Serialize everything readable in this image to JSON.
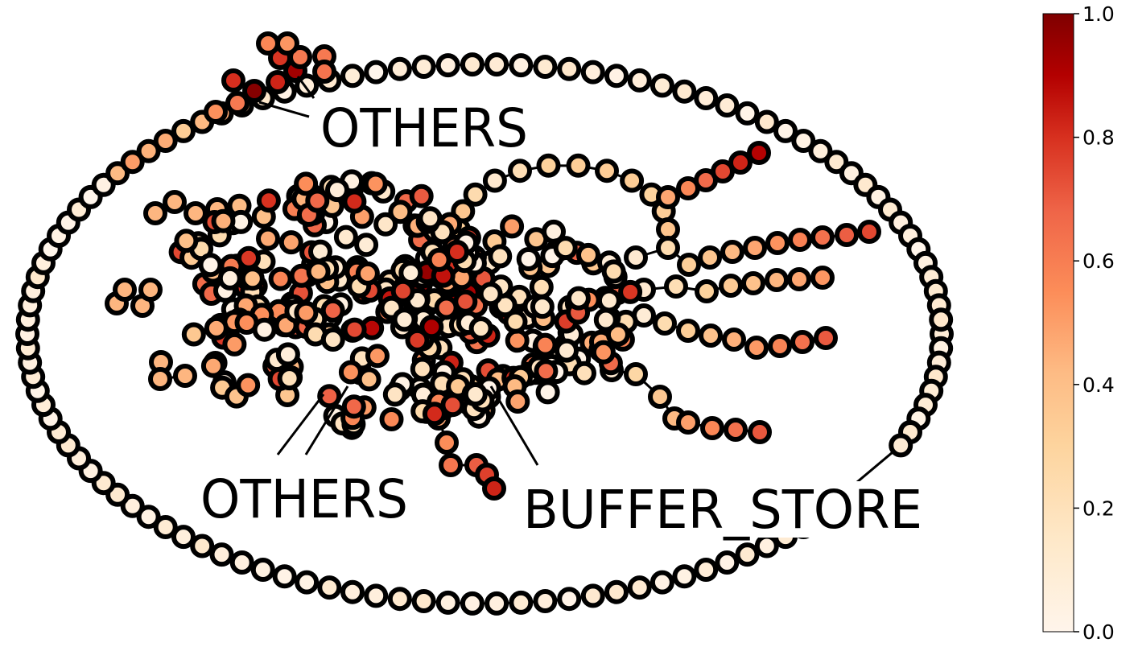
{
  "graph": {
    "node_colormap": "OrRd",
    "node_outline_color": "#000000",
    "edge_color": "#000000",
    "annotations": [
      {
        "id": "others-top",
        "text": "OTHERS"
      },
      {
        "id": "others-bottom",
        "text": "OTHERS"
      },
      {
        "id": "buffer-store",
        "text": "BUFFER_STORE"
      }
    ]
  },
  "colorbar": {
    "min": 0.0,
    "max": 1.0,
    "ticks": [
      "0.0",
      "0.2",
      "0.4",
      "0.6",
      "0.8",
      "1.0"
    ],
    "stops": [
      "#fff5eb",
      "#fdd49e",
      "#fdbb84",
      "#fc8d59",
      "#ef6548",
      "#d7301f",
      "#b30000",
      "#7f0000"
    ]
  }
}
